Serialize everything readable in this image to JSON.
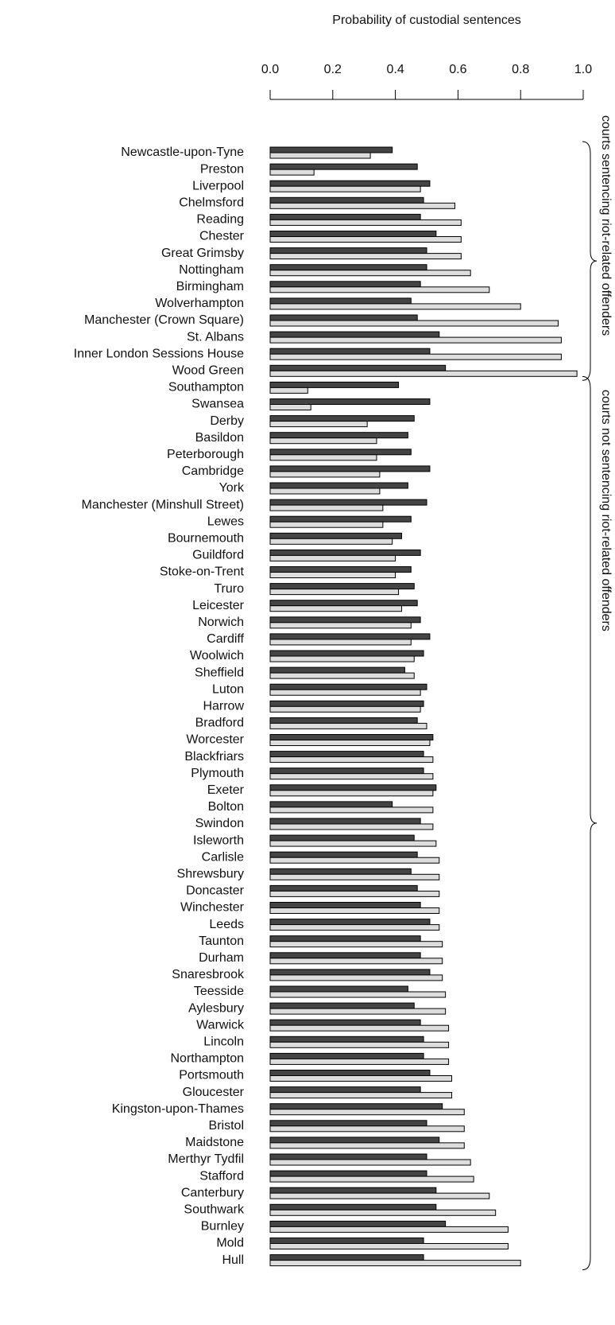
{
  "chart_data": {
    "type": "bar",
    "orientation": "horizontal",
    "x_label": "Probability of custodial sentences",
    "xlim": [
      0,
      1
    ],
    "xticks": [
      {
        "value": 0,
        "label": "0.0"
      },
      0.2,
      0.4,
      0.6,
      0.8,
      {
        "value": 1,
        "label": "1.0"
      }
    ],
    "annotations": [
      "courts sentencing riot-related offenders",
      "courts not sentencing riot-related offenders"
    ],
    "categories": [
      "Newcastle-upon-Tyne",
      "Preston",
      "Liverpool",
      "Chelmsford",
      "Reading",
      "Chester",
      "Great Grimsby",
      "Nottingham",
      "Birmingham",
      "Wolverhampton",
      "Manchester (Crown Square)",
      "St. Albans",
      "Inner London Sessions House",
      "Wood Green",
      "Southampton",
      "Swansea",
      "Derby",
      "Basildon",
      "Peterborough",
      "Cambridge",
      "York",
      "Manchester (Minshull Street)",
      "Lewes",
      "Bournemouth",
      "Guildford",
      "Stoke-on-Trent",
      "Truro",
      "Leicester",
      "Norwich",
      "Cardiff",
      "Woolwich",
      "Sheffield",
      "Luton",
      "Harrow",
      "Bradford",
      "Worcester",
      "Blackfriars",
      "Plymouth",
      "Exeter",
      "Bolton",
      "Swindon",
      "Isleworth",
      "Carlisle",
      "Shrewsbury",
      "Doncaster",
      "Winchester",
      "Leeds",
      "Taunton",
      "Durham",
      "Snaresbrook",
      "Teesside",
      "Aylesbury",
      "Warwick",
      "Lincoln",
      "Northampton",
      "Portsmouth",
      "Gloucester",
      "Kingston-upon-Thames",
      "Bristol",
      "Maidstone",
      "Merthyr Tydfil",
      "Stafford",
      "Canterbury",
      "Southwark",
      "Burnley",
      "Mold",
      "Hull"
    ],
    "series": [
      {
        "color": "#444444",
        "values": [
          0.39,
          0.47,
          0.51,
          0.49,
          0.48,
          0.53,
          0.5,
          0.5,
          0.48,
          0.45,
          0.47,
          0.54,
          0.51,
          0.56,
          0.41,
          0.51,
          0.46,
          0.44,
          0.45,
          0.51,
          0.44,
          0.5,
          0.45,
          0.42,
          0.48,
          0.45,
          0.46,
          0.47,
          0.48,
          0.51,
          0.49,
          0.43,
          0.5,
          0.49,
          0.47,
          0.52,
          0.49,
          0.49,
          0.53,
          0.39,
          0.48,
          0.46,
          0.47,
          0.45,
          0.47,
          0.48,
          0.51,
          0.48,
          0.48,
          0.51,
          0.44,
          0.46,
          0.48,
          0.49,
          0.49,
          0.51,
          0.48,
          0.55,
          0.5,
          0.54,
          0.5,
          0.5,
          0.53,
          0.53,
          0.56,
          0.49,
          0.49
        ]
      },
      {
        "color": "#dddddd",
        "values": [
          0.32,
          0.14,
          0.48,
          0.59,
          0.61,
          0.61,
          0.61,
          0.64,
          0.7,
          0.8,
          0.92,
          0.93,
          0.93,
          0.98,
          0.12,
          0.13,
          0.31,
          0.34,
          0.34,
          0.35,
          0.35,
          0.36,
          0.36,
          0.39,
          0.4,
          0.4,
          0.41,
          0.42,
          0.45,
          0.45,
          0.46,
          0.46,
          0.48,
          0.48,
          0.5,
          0.51,
          0.52,
          0.52,
          0.52,
          0.52,
          0.52,
          0.53,
          0.54,
          0.54,
          0.54,
          0.54,
          0.54,
          0.55,
          0.55,
          0.55,
          0.56,
          0.56,
          0.57,
          0.57,
          0.57,
          0.58,
          0.58,
          0.62,
          0.62,
          0.62,
          0.64,
          0.65,
          0.7,
          0.72,
          0.76,
          0.76,
          0.8
        ]
      }
    ]
  }
}
